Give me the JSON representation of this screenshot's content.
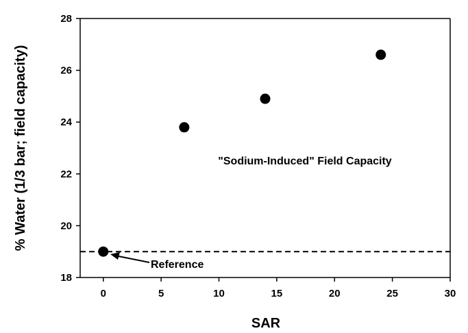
{
  "chart_data": {
    "type": "scatter",
    "title": "",
    "xlabel": "SAR",
    "ylabel": "% Water (1/3 bar; field capacity)",
    "xlim": [
      -2,
      30
    ],
    "ylim": [
      18,
      28
    ],
    "x_ticks": [
      0,
      5,
      10,
      15,
      20,
      25,
      30
    ],
    "y_ticks": [
      18,
      20,
      22,
      24,
      26,
      28
    ],
    "x_tick_labels": [
      "0",
      "5",
      "10",
      "15",
      "20",
      "25",
      "30"
    ],
    "y_tick_labels": [
      "18",
      "20",
      "22",
      "24",
      "26",
      "28"
    ],
    "grid": false,
    "series": [
      {
        "x": [
          0,
          7,
          14,
          24
        ],
        "y": [
          19.0,
          23.8,
          24.9,
          26.6
        ],
        "marker": "filled-circle",
        "color": "#000000"
      }
    ],
    "reference_line": {
      "y": 19.0,
      "style": "dashed",
      "color": "#000000"
    },
    "annotations": {
      "field_capacity_label": "\"Sodium-Induced\" Field Capacity",
      "reference_label": "Reference"
    }
  }
}
